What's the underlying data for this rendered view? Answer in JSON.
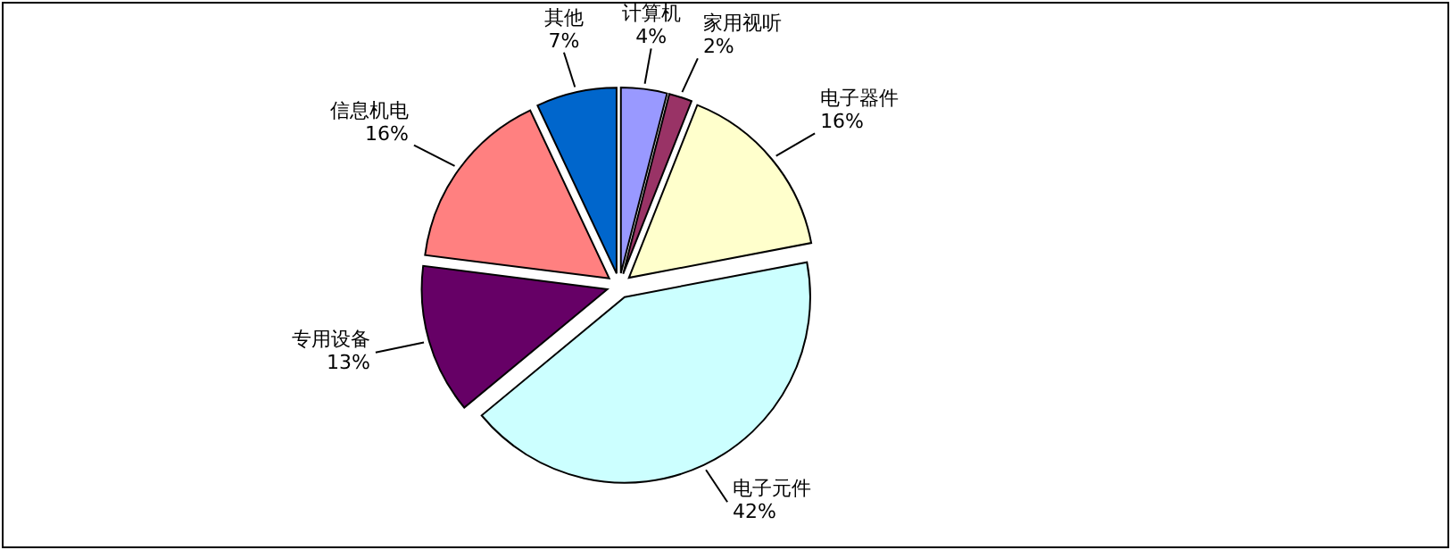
{
  "chart_data": {
    "type": "pie",
    "categories": [
      "计算机",
      "家用视听",
      "电子器件",
      "电子元件",
      "专用设备",
      "信息机电",
      "其他"
    ],
    "values": [
      4,
      2,
      16,
      42,
      13,
      16,
      7
    ],
    "value_labels": [
      "4%",
      "2%",
      "16%",
      "42%",
      "13%",
      "16%",
      "7%"
    ],
    "colors": [
      "#9999ff",
      "#993366",
      "#ffffcc",
      "#ccffff",
      "#660066",
      "#ff8080",
      "#0066cc"
    ]
  }
}
